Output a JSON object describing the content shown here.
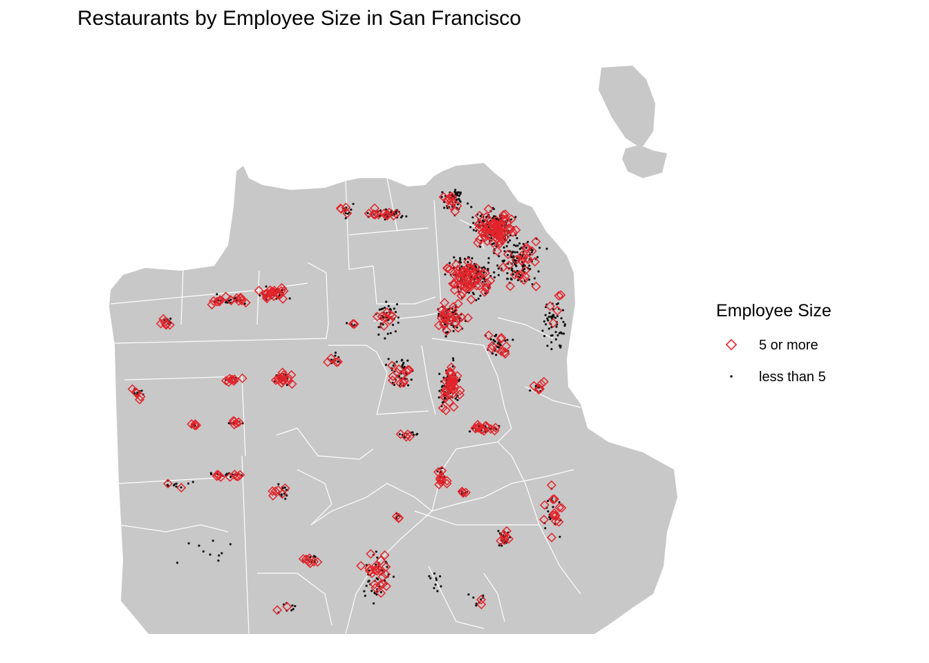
{
  "title": "Restaurants by Employee Size in San Francisco",
  "legend": {
    "title": "Employee Size",
    "items": [
      {
        "label": "5 or more",
        "shape": "open-diamond",
        "color": "#e3242b"
      },
      {
        "label": "less than 5",
        "shape": "small-dot",
        "color": "#000000"
      }
    ]
  },
  "colors": {
    "land": "#c8c8c8",
    "boundaries": "#ffffff",
    "large_restaurant": "#e3242b",
    "small_restaurant": "#111111"
  }
}
